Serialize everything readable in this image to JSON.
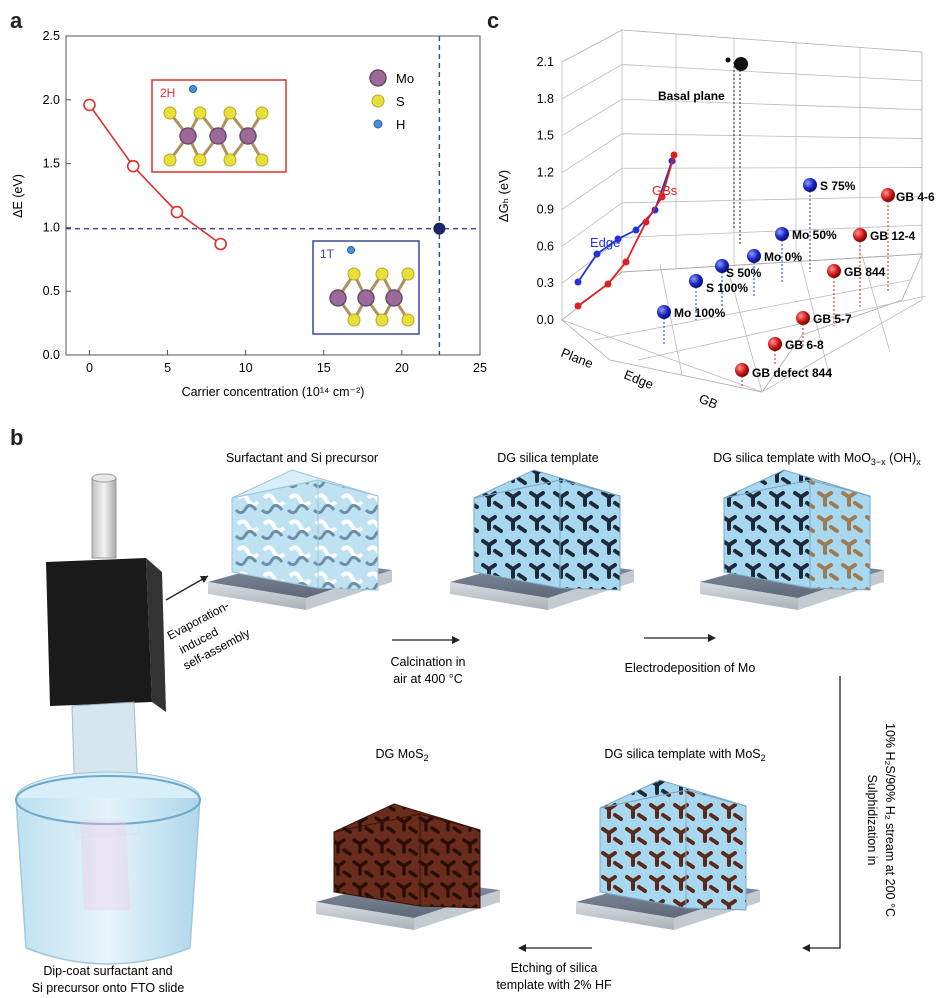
{
  "panels": {
    "a": {
      "letter": "a"
    },
    "b": {
      "letter": "b"
    },
    "c": {
      "letter": "c"
    }
  },
  "chart_data": [
    {
      "panel": "a",
      "type": "line",
      "xlabel": "Carrier concentration (10¹⁴ cm⁻²)",
      "ylabel": "ΔE (eV)",
      "xlim": [
        -1.5,
        25
      ],
      "ylim": [
        0,
        2.5
      ],
      "xticks": [
        0,
        5,
        10,
        15,
        20,
        25
      ],
      "yticks": [
        0.0,
        0.5,
        1.0,
        1.5,
        2.0,
        2.5
      ],
      "ytick_labels": [
        "0.0",
        "0.5",
        "1.0",
        "1.5",
        "2.0",
        "2.5"
      ],
      "series": [
        {
          "color": "#e0302a",
          "x": [
            0,
            2.8,
            5.6,
            8.4
          ],
          "y": [
            1.96,
            1.48,
            1.12,
            0.87
          ]
        }
      ],
      "marker_point": {
        "x": 22.4,
        "y": 0.99,
        "color": "#1a2466"
      },
      "dashed_lines": {
        "x": 22.4,
        "y": 0.99,
        "color": "#3a4a9a"
      },
      "legend": [
        {
          "label": "Mo",
          "color": "#9b6a9a"
        },
        {
          "label": "S",
          "color": "#e8e03a"
        },
        {
          "label": "H",
          "color": "#4a90d9"
        }
      ],
      "insets": [
        {
          "label": "2H",
          "color": "#e0302a"
        },
        {
          "label": "1T",
          "color": "#3a4a9a"
        }
      ],
      "grid": false
    },
    {
      "panel": "c",
      "type": "scatter",
      "ylabel": "ΔGₕ (eV)",
      "ylim": [
        0.0,
        2.1
      ],
      "yticks": [
        0.0,
        0.3,
        0.6,
        0.9,
        1.2,
        1.5,
        1.8,
        2.1
      ],
      "ytick_labels": [
        "0.0",
        "0.3",
        "0.6",
        "0.9",
        "1.2",
        "1.5",
        "1.8",
        "2.1"
      ],
      "xcategories": [
        "Plane",
        "Edge",
        "GB"
      ],
      "grid": true,
      "points": [
        {
          "label": "Basal plane",
          "category": "Plane",
          "value": 2.05,
          "color": "#111111"
        },
        {
          "label": "Mo 100%",
          "category": "Edge",
          "value": 0.0,
          "color": "#1c28c8"
        },
        {
          "label": "S 100%",
          "category": "Edge",
          "value": 0.15,
          "color": "#1c28c8"
        },
        {
          "label": "S 50%",
          "category": "Edge",
          "value": 0.2,
          "color": "#1c28c8"
        },
        {
          "label": "Mo 0%",
          "category": "Edge",
          "value": 0.23,
          "color": "#1c28c8"
        },
        {
          "label": "Mo 50%",
          "category": "Edge",
          "value": 0.3,
          "color": "#1c28c8"
        },
        {
          "label": "S 75%",
          "category": "Edge",
          "value": 0.5,
          "color": "#1c28c8"
        },
        {
          "label": "GB defect 844",
          "category": "GB",
          "value": 0.0,
          "color": "#d81818"
        },
        {
          "label": "GB 6-8",
          "category": "GB",
          "value": 0.1,
          "color": "#d81818"
        },
        {
          "label": "GB 5-7",
          "category": "GB",
          "value": 0.12,
          "color": "#d81818"
        },
        {
          "label": "GB 844",
          "category": "GB",
          "value": 0.3,
          "color": "#d81818"
        },
        {
          "label": "GB 12-4",
          "category": "GB",
          "value": 0.52,
          "color": "#d81818"
        },
        {
          "label": "GB 4-6",
          "category": "GB",
          "value": 0.82,
          "color": "#d81818"
        }
      ],
      "series": [
        {
          "name": "Edge",
          "color": "#2233dd",
          "values": [
            0.3,
            0.55,
            0.65,
            0.72,
            0.88,
            1.27
          ]
        },
        {
          "name": "GBs",
          "color": "#e02020",
          "values": [
            0.1,
            0.25,
            0.47,
            0.8,
            1.05,
            1.32
          ]
        }
      ]
    }
  ],
  "process": {
    "labels": {
      "surfactant": "Surfactant and Si precursor",
      "dg_template": "DG silica template",
      "dg_template_moo3_a": "DG silica template with MoO",
      "dg_template_moo3_sub": "3−x",
      "dg_template_moo3_b": " (OH)",
      "dg_template_moo3_sub2": "x",
      "dg_mos2_a": "DG MoS",
      "dg_mos2_sub": "2",
      "dg_template_mos2_a": "DG silica template with MoS",
      "dg_template_mos2_sub": "2",
      "dipcoat_1": "Dip-coat surfactant and",
      "dipcoat_2": "Si precursor onto FTO slide"
    },
    "arrows": {
      "evaporation_1": "Evaporation-",
      "evaporation_2": "induced",
      "evaporation_3": "self-assembly",
      "calcination_1": "Calcination in",
      "calcination_2": "air at 400 °C",
      "electrodeposition": "Electrodeposition of Mo",
      "sulph_1": "Sulphidization in",
      "sulph_2": "10% H₂S/90% H₂ stream at 200 °C",
      "etching_1": "Etching of silica",
      "etching_2": "template with 2% HF"
    }
  }
}
